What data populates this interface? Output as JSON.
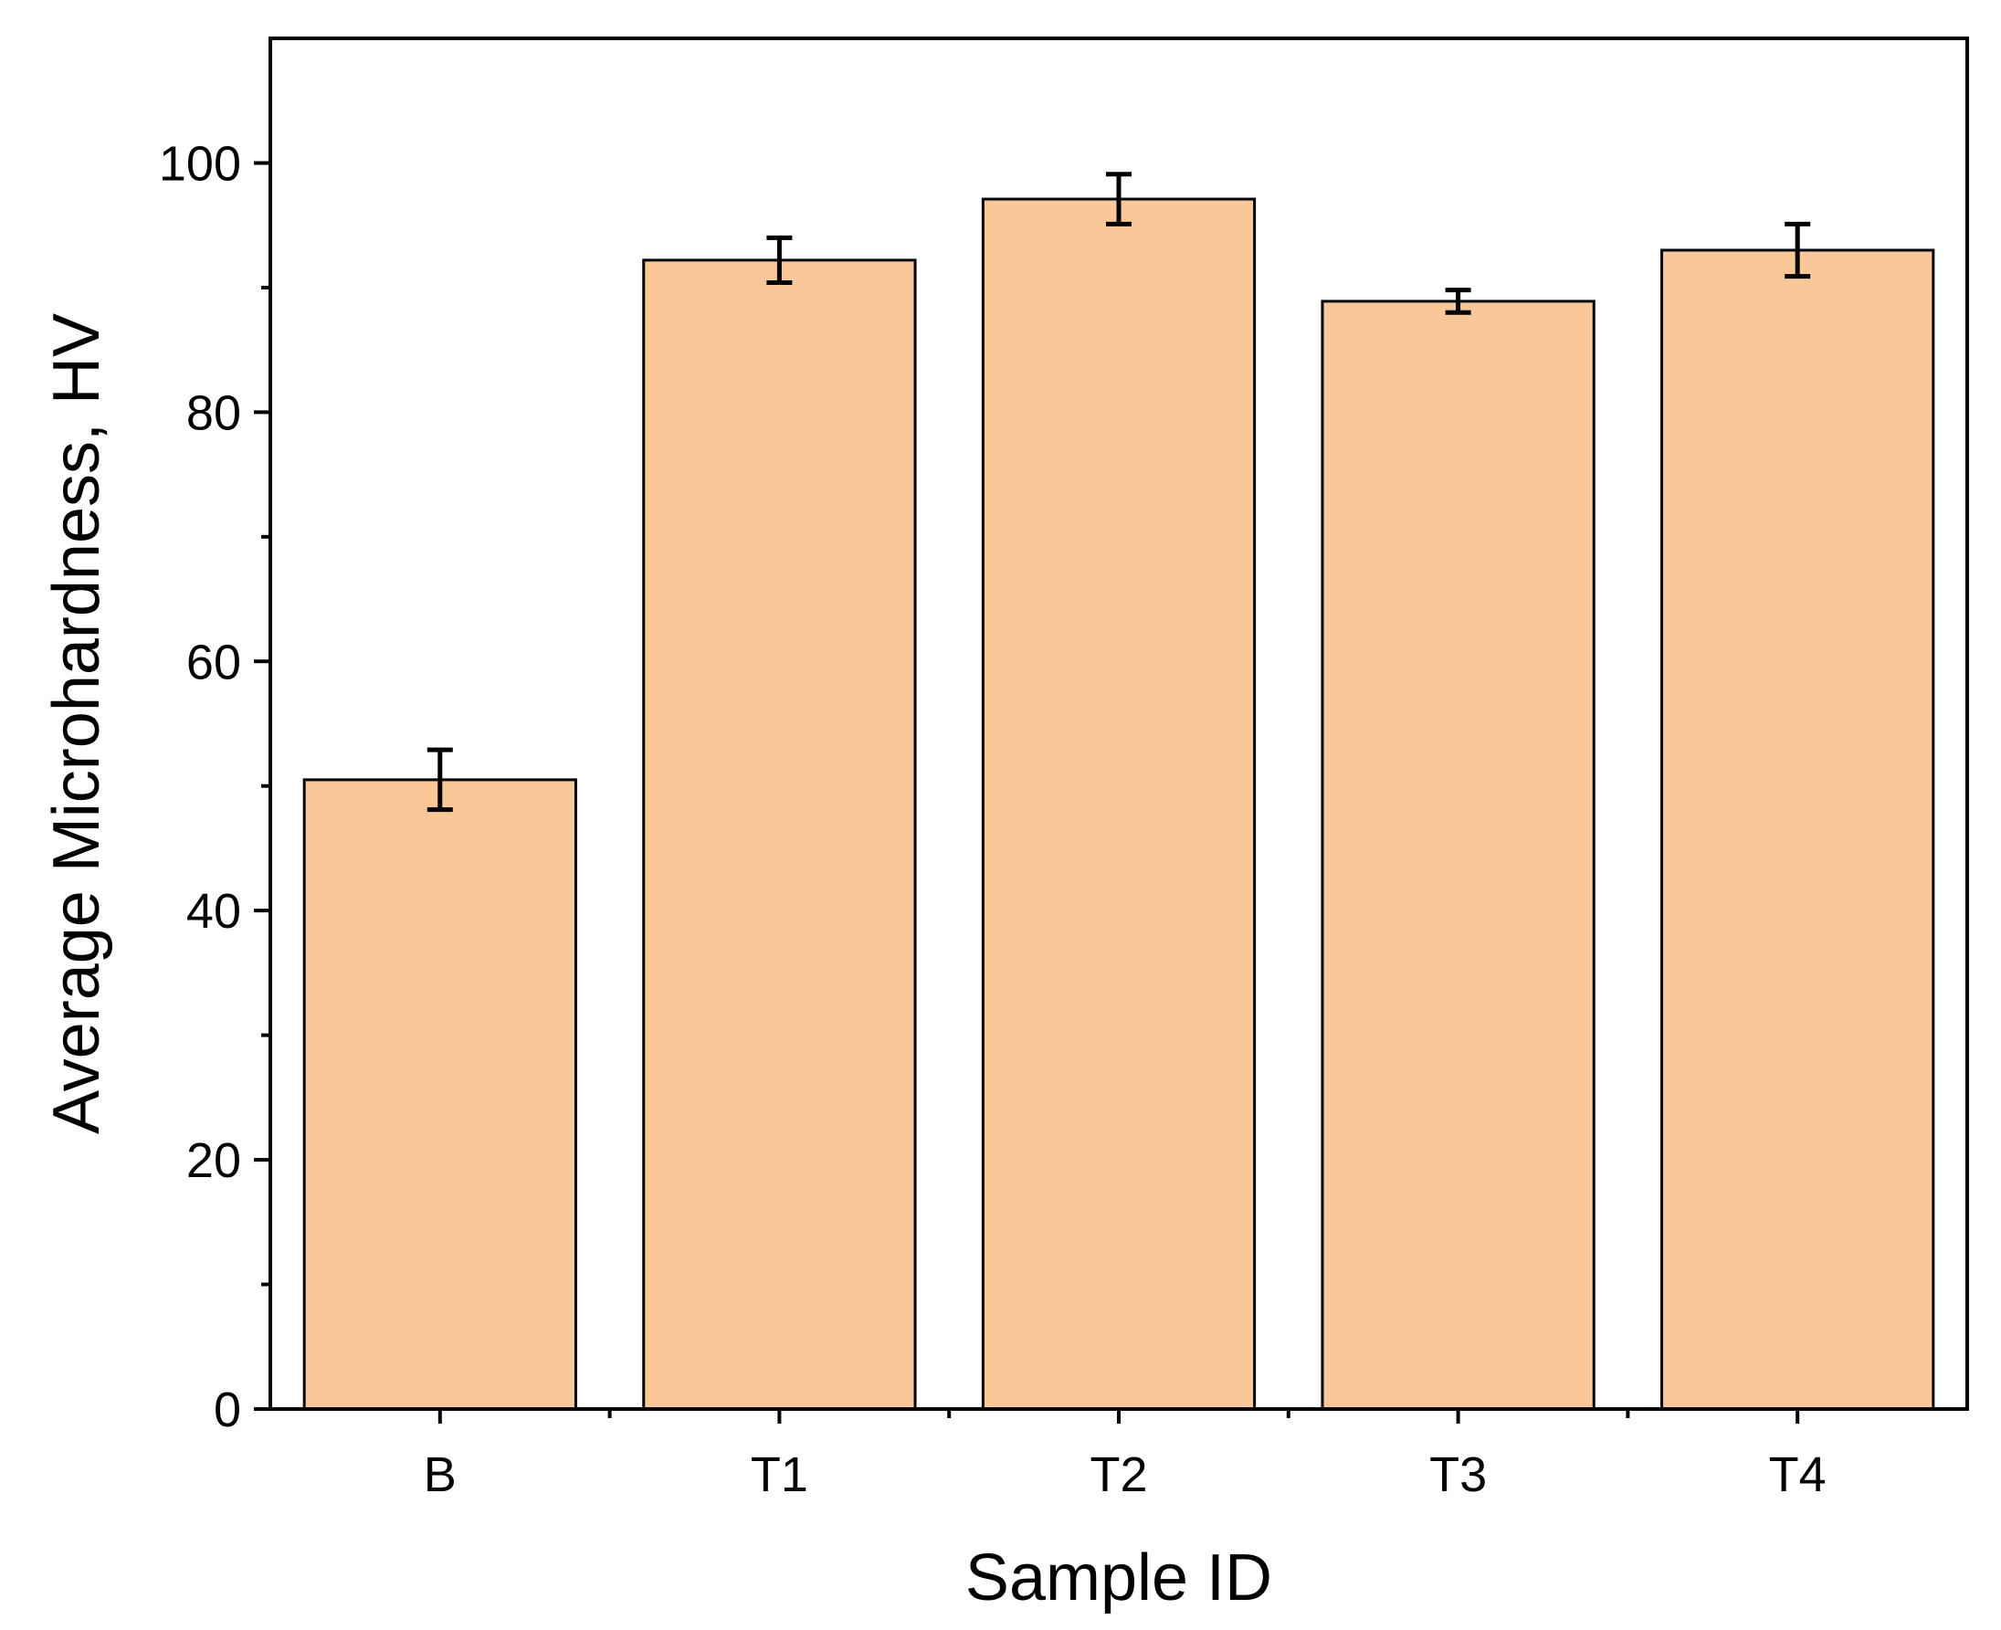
{
  "chart_data": {
    "type": "bar",
    "categories": [
      "B",
      "T1",
      "T2",
      "T3",
      "T4"
    ],
    "values": [
      50.5,
      92.2,
      97.1,
      88.9,
      93.0
    ],
    "errors": [
      2.4,
      1.8,
      2.0,
      0.9,
      2.1
    ],
    "title": "",
    "xlabel": "Sample ID",
    "ylabel": "Average Microhardness, HV",
    "ylim": [
      0,
      110
    ],
    "yticks": [
      0,
      20,
      40,
      60,
      80,
      100
    ],
    "ytick_labels": [
      "0",
      "20",
      "40",
      "60",
      "80",
      "100"
    ],
    "grid": false,
    "legend": "none",
    "bar_color": "#FAC898",
    "bar_edge_color": "#000000"
  }
}
